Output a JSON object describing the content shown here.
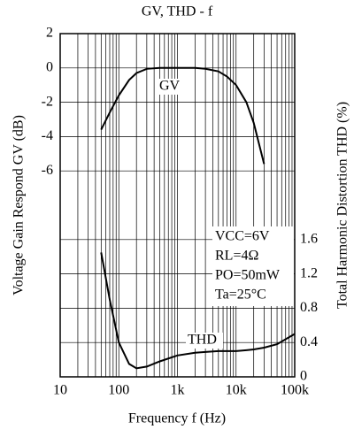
{
  "chart_data": {
    "type": "line",
    "title": "GV, THD - f",
    "x_label": "Frequency f (Hz)",
    "y_label": "Voltage Gain Respond GV (dB)",
    "y2_label": "Total Harmonic Distortion THD (%)",
    "x": [
      50,
      70,
      100,
      150,
      200,
      300,
      500,
      1000,
      2000,
      3000,
      5000,
      7000,
      10000,
      15000,
      20000,
      30000,
      50000,
      100000
    ],
    "series": [
      {
        "name": "GV",
        "color": "#000000",
        "values": [
          -3.6,
          -2.6,
          -1.6,
          -0.7,
          -0.3,
          -0.05,
          0,
          0,
          0,
          -0.05,
          -0.2,
          -0.5,
          -1,
          -2,
          -3.2,
          -5.6,
          null,
          null
        ]
      },
      {
        "name": "THD",
        "color": "#000000",
        "axis": "y2",
        "values": [
          1.45,
          0.9,
          0.4,
          0.15,
          0.1,
          0.12,
          0.18,
          0.25,
          0.28,
          0.29,
          0.3,
          0.3,
          0.3,
          0.31,
          0.32,
          0.34,
          0.38,
          0.5
        ]
      }
    ],
    "x_log": true,
    "xlim": [
      10,
      100000
    ],
    "xticks": [
      10,
      100,
      {
        "value": 1000,
        "label": "1k"
      },
      {
        "value": 10000,
        "label": "10k"
      },
      {
        "value": 100000,
        "label": "100k"
      }
    ],
    "ylim": [
      -18,
      2
    ],
    "yticks": [
      2,
      0,
      -2,
      -4,
      -6
    ],
    "y2lim": [
      0,
      4
    ],
    "y2ticks": [
      0,
      0.4,
      0.8,
      1.2,
      1.6
    ],
    "grid": true,
    "conditions": [
      "VCC=6V",
      "RL=4Ω",
      "PO=50mW",
      "Ta=25°C"
    ]
  }
}
